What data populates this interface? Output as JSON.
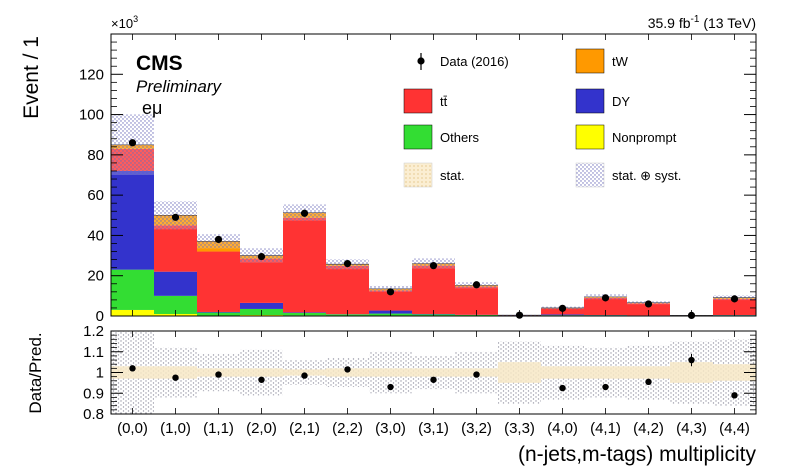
{
  "header": {
    "lumi_value": "35.9 fb",
    "lumi_exp": "-1",
    "lumi_energy": "(13 TeV)",
    "cms": "CMS",
    "preliminary": "Preliminary",
    "channel": "eμ",
    "y_multiplier_base": "×10",
    "y_multiplier_exp": "3"
  },
  "legend": {
    "data": "Data (2016)",
    "tw": "tW",
    "tt": "tt̄",
    "dy": "DY",
    "others": "Others",
    "nonprompt": "Nonprompt",
    "stat": "stat.",
    "statsyst": "stat. ⊕ syst."
  },
  "colors": {
    "tt": "#ff3333",
    "tw": "#ff9900",
    "dy": "#3333cc",
    "others": "#33dd33",
    "nonprompt": "#ffff00",
    "data": "#000000",
    "stat_band": "#f5deb3",
    "syst_band": "#6b6bb8"
  },
  "chart_data": [
    {
      "type": "bar",
      "stacked": true,
      "ylabel": "Event / 1",
      "y_scale_note": "×10^3",
      "ylim": [
        0,
        140
      ],
      "yticks": [
        0,
        20,
        40,
        60,
        80,
        100,
        120
      ],
      "categories": [
        "(0,0)",
        "(1,0)",
        "(1,1)",
        "(2,0)",
        "(2,1)",
        "(2,2)",
        "(3,0)",
        "(3,1)",
        "(3,2)",
        "(3,3)",
        "(4,0)",
        "(4,1)",
        "(4,2)",
        "(4,3)",
        "(4,4)"
      ],
      "series": [
        {
          "name": "Nonprompt",
          "values": [
            3,
            1,
            0.2,
            0.5,
            0.3,
            0.2,
            0.2,
            0.2,
            0.1,
            0.05,
            0.1,
            0.1,
            0.05,
            0.02,
            0.1
          ]
        },
        {
          "name": "Others",
          "values": [
            20,
            9,
            1.5,
            3,
            1.2,
            0.6,
            1,
            0.6,
            0.4,
            0.05,
            0.3,
            0.3,
            0.2,
            0.02,
            0.3
          ]
        },
        {
          "name": "DY",
          "values": [
            49,
            12,
            0.3,
            3,
            0.3,
            0.1,
            1.5,
            0.2,
            0.1,
            0.02,
            0.4,
            0.1,
            0.05,
            0.01,
            0.1
          ]
        },
        {
          "name": "tt̄",
          "values": [
            11,
            23,
            30,
            22,
            47,
            24,
            10,
            24,
            14,
            0.3,
            3,
            8.5,
            6,
            0.2,
            8
          ]
        },
        {
          "name": "tW",
          "values": [
            2,
            5,
            5,
            1.5,
            2.5,
            0.8,
            0.8,
            1,
            0.6,
            0.02,
            0.2,
            0.5,
            0.3,
            0.02,
            0.6
          ]
        }
      ],
      "data": {
        "name": "Data (2016)",
        "values": [
          86,
          49,
          38,
          29.5,
          51,
          26,
          12,
          25,
          15.5,
          0.4,
          3.8,
          9,
          6,
          0.3,
          8.5
        ]
      },
      "uncertainty_total_halfwidth": [
        15,
        7,
        3.5,
        3.5,
        4,
        2.5,
        1.5,
        2.5,
        1.5,
        0.1,
        0.6,
        1.2,
        0.8,
        0.05,
        1.2
      ],
      "legend_position": "top-right"
    },
    {
      "type": "scatter",
      "ylabel": "Data/Pred.",
      "xlabel": "(n-jets,m-tags) multiplicity",
      "ylim": [
        0.8,
        1.2
      ],
      "yticks": [
        0.8,
        0.9,
        1,
        1.1,
        1.2
      ],
      "categories": [
        "(0,0)",
        "(1,0)",
        "(1,1)",
        "(2,0)",
        "(2,1)",
        "(2,2)",
        "(3,0)",
        "(3,1)",
        "(3,2)",
        "(3,3)",
        "(4,0)",
        "(4,1)",
        "(4,2)",
        "(4,3)",
        "(4,4)"
      ],
      "values": [
        1.02,
        0.975,
        0.99,
        0.965,
        0.985,
        1.015,
        0.93,
        0.965,
        0.99,
        null,
        0.925,
        0.93,
        0.955,
        1.06,
        0.89
      ],
      "errors": [
        0.005,
        0.005,
        0.005,
        0.005,
        0.005,
        0.005,
        0.008,
        0.005,
        0.008,
        0,
        0.01,
        0.01,
        0.012,
        0.03,
        0.012
      ],
      "syst_halfwidth": [
        0.2,
        0.12,
        0.09,
        0.11,
        0.06,
        0.07,
        0.1,
        0.08,
        0.1,
        0.15,
        0.13,
        0.12,
        0.13,
        0.15,
        0.16
      ],
      "stat_halfwidth": [
        0.03,
        0.03,
        0.02,
        0.02,
        0.015,
        0.02,
        0.02,
        0.02,
        0.02,
        0.05,
        0.03,
        0.03,
        0.03,
        0.05,
        0.04
      ]
    }
  ]
}
